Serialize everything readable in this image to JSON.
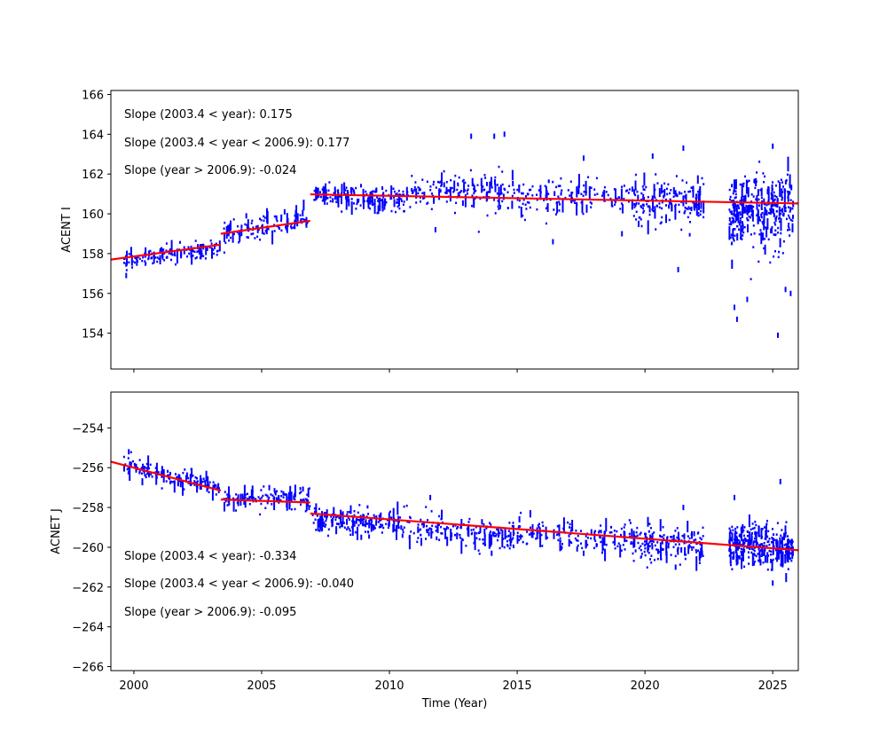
{
  "colors": {
    "data": "#0000ff",
    "fit": "#ff0000",
    "axes": "#000000"
  },
  "chart_data": [
    {
      "type": "scatter",
      "ylabel": "ACENT I",
      "xlabel": "",
      "xlim": [
        1999.1,
        2026.0
      ],
      "ylim": [
        152.2,
        166.2
      ],
      "x_ticks": [
        2000,
        2005,
        2010,
        2015,
        2020,
        2025
      ],
      "x_tick_labels": [],
      "y_ticks": [
        154,
        156,
        158,
        160,
        162,
        164,
        166
      ],
      "y_tick_labels": [
        "154",
        "156",
        "158",
        "160",
        "162",
        "164",
        "166"
      ],
      "annotations": [
        "Slope (2003.4 < year):  0.175",
        "Slope (2003.4 <  year < 2006.9): 0.177",
        "Slope (year > 2006.9):  -0.024"
      ],
      "fit_segments": [
        {
          "x": [
            1999.1,
            2003.4
          ],
          "y": [
            157.7,
            158.45
          ]
        },
        {
          "x": [
            2003.4,
            2006.9
          ],
          "y": [
            159.0,
            159.65
          ]
        },
        {
          "x": [
            2006.9,
            2026.0
          ],
          "y": [
            160.98,
            160.52
          ]
        }
      ],
      "data_clusters": [
        {
          "x": [
            1999.6,
            2003.4
          ],
          "ymid": [
            157.6,
            158.35
          ],
          "spread": 0.45,
          "n": 140,
          "extra": [
            [
              1999.7,
              156.9
            ]
          ]
        },
        {
          "x": [
            2003.5,
            2006.9
          ],
          "ymid": [
            159.0,
            159.7
          ],
          "spread": 0.55,
          "n": 110,
          "extra": [
            [
              2004.4,
              159.9
            ],
            [
              2005.9,
              160.1
            ]
          ]
        },
        {
          "x": [
            2007.0,
            2010.5
          ],
          "ymid": [
            160.9,
            160.7
          ],
          "spread": 0.6,
          "n": 160,
          "extra": [
            [
              2007.5,
              161.4
            ],
            [
              2008.5,
              161.2
            ]
          ]
        },
        {
          "x": [
            2010.5,
            2014.9
          ],
          "ymid": [
            160.9,
            161.2
          ],
          "spread": 1.0,
          "n": 170,
          "extra": [
            [
              2013.2,
              163.9
            ],
            [
              2014.1,
              163.9
            ],
            [
              2014.5,
              164.0
            ],
            [
              2011.8,
              159.2
            ]
          ]
        },
        {
          "x": [
            2015.0,
            2019.5
          ],
          "ymid": [
            160.8,
            160.9
          ],
          "spread": 0.9,
          "n": 140,
          "extra": [
            [
              2016.4,
              158.6
            ],
            [
              2017.6,
              162.8
            ],
            [
              2019.1,
              159.0
            ]
          ]
        },
        {
          "x": [
            2019.5,
            2022.3
          ],
          "ymid": [
            160.6,
            160.5
          ],
          "spread": 1.2,
          "n": 170,
          "extra": [
            [
              2021.5,
              163.3
            ],
            [
              2021.3,
              157.2
            ],
            [
              2020.3,
              162.9
            ]
          ]
        },
        {
          "x": [
            2023.3,
            2025.8
          ],
          "ymid": [
            160.0,
            160.3
          ],
          "spread": 1.8,
          "n": 330,
          "extra": [
            [
              2023.5,
              155.3
            ],
            [
              2023.6,
              154.7
            ],
            [
              2024.0,
              155.7
            ],
            [
              2025.0,
              163.4
            ],
            [
              2025.2,
              153.9
            ],
            [
              2025.7,
              156.0
            ],
            [
              2025.5,
              156.2
            ]
          ]
        }
      ]
    },
    {
      "type": "scatter",
      "ylabel": "ACNET J",
      "xlabel": "Time (Year)",
      "xlim": [
        1999.1,
        2026.0
      ],
      "ylim": [
        -266.2,
        -252.2
      ],
      "x_ticks": [
        2000,
        2005,
        2010,
        2015,
        2020,
        2025
      ],
      "x_tick_labels": [
        "2000",
        "2005",
        "2010",
        "2015",
        "2020",
        "2025"
      ],
      "y_ticks": [
        -266,
        -264,
        -262,
        -260,
        -258,
        -256,
        -254
      ],
      "y_tick_labels": [
        "−266",
        "−264",
        "−262",
        "−260",
        "−258",
        "−256",
        "−254"
      ],
      "annotations": [
        "Slope (2003.4 < year):  -0.334",
        "Slope (2003.4 <  year < 2006.9): -0.040",
        "Slope (year > 2006.9):  -0.095"
      ],
      "fit_segments": [
        {
          "x": [
            1999.1,
            2003.4
          ],
          "y": [
            -255.7,
            -257.15
          ]
        },
        {
          "x": [
            2003.4,
            2006.9
          ],
          "y": [
            -257.6,
            -257.75
          ]
        },
        {
          "x": [
            2006.9,
            2026.0
          ],
          "y": [
            -258.3,
            -260.15
          ]
        }
      ],
      "data_clusters": [
        {
          "x": [
            1999.6,
            2003.4
          ],
          "ymid": [
            -255.9,
            -257.0
          ],
          "spread": 0.45,
          "n": 160,
          "extra": [
            [
              1999.8,
              -255.2
            ]
          ]
        },
        {
          "x": [
            2003.5,
            2006.9
          ],
          "ymid": [
            -257.6,
            -257.6
          ],
          "spread": 0.5,
          "n": 120,
          "extra": [
            [
              2005.3,
              -257.0
            ]
          ]
        },
        {
          "x": [
            2007.0,
            2010.5
          ],
          "ymid": [
            -258.6,
            -258.8
          ],
          "spread": 0.6,
          "n": 170,
          "extra": [
            [
              2008.9,
              -259.5
            ]
          ]
        },
        {
          "x": [
            2010.5,
            2014.9
          ],
          "ymid": [
            -258.9,
            -259.4
          ],
          "spread": 0.8,
          "n": 170,
          "extra": [
            [
              2011.6,
              -257.5
            ],
            [
              2014.0,
              -260.3
            ]
          ]
        },
        {
          "x": [
            2015.0,
            2019.5
          ],
          "ymid": [
            -259.3,
            -259.6
          ],
          "spread": 0.7,
          "n": 140,
          "extra": [
            [
              2017.6,
              -260.3
            ]
          ]
        },
        {
          "x": [
            2019.5,
            2022.3
          ],
          "ymid": [
            -259.7,
            -259.9
          ],
          "spread": 0.9,
          "n": 170,
          "extra": [
            [
              2021.5,
              -258.0
            ],
            [
              2021.2,
              -261.0
            ]
          ]
        },
        {
          "x": [
            2023.3,
            2025.8
          ],
          "ymid": [
            -259.8,
            -260.0
          ],
          "spread": 1.0,
          "n": 330,
          "extra": [
            [
              2025.3,
              -256.7
            ],
            [
              2025.0,
              -261.8
            ],
            [
              2023.5,
              -257.5
            ]
          ]
        }
      ]
    }
  ]
}
